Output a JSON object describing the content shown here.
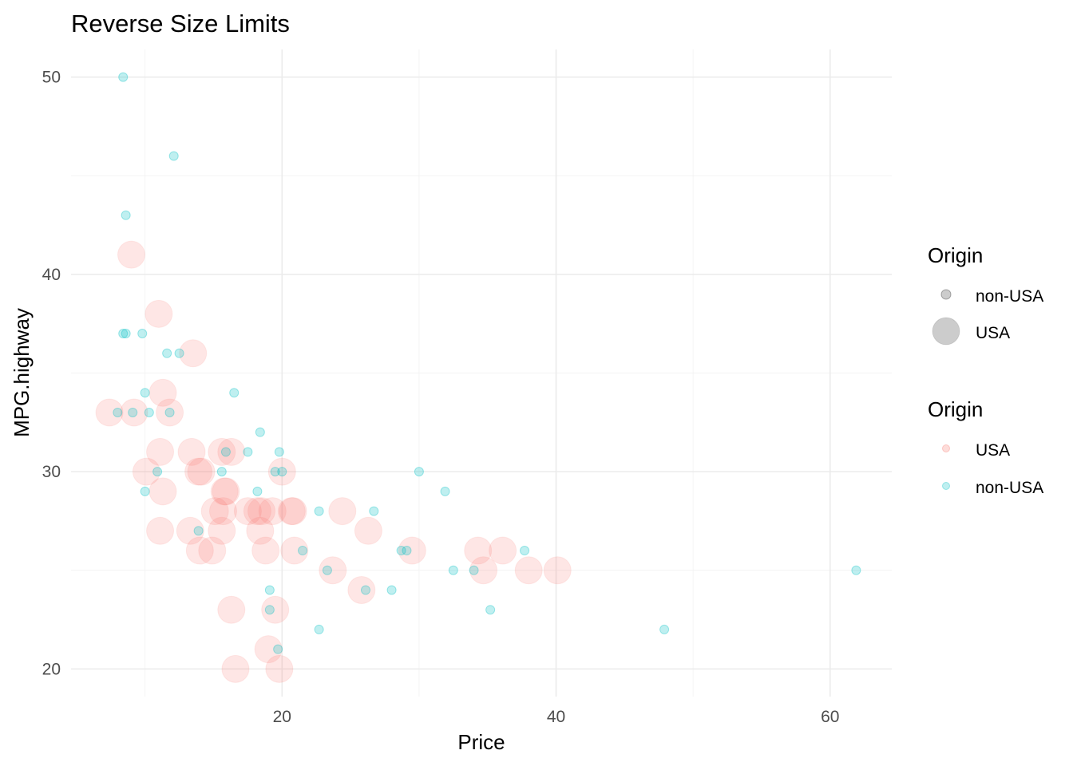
{
  "chart_data": {
    "type": "scatter",
    "title": "Reverse Size Limits",
    "xlabel": "Price",
    "ylabel": "MPG.highway",
    "xlim": [
      4.6,
      64.5
    ],
    "ylim": [
      18.6,
      51.4
    ],
    "x_ticks": [
      20,
      40,
      60
    ],
    "x_minor": [
      10,
      30,
      50
    ],
    "y_ticks": [
      20,
      30,
      40,
      50
    ],
    "y_minor": [
      25,
      35,
      45
    ],
    "grid": true,
    "legend_position": "right",
    "size_legend": {
      "title": "Origin",
      "items": [
        {
          "label": "non-USA",
          "size": "small"
        },
        {
          "label": "USA",
          "size": "large"
        }
      ]
    },
    "color_legend": {
      "title": "Origin",
      "items": [
        {
          "label": "USA",
          "color": "#F8766D"
        },
        {
          "label": "non-USA",
          "color": "#00BFC4"
        }
      ]
    },
    "series": [
      {
        "name": "USA",
        "color": "#F8766D",
        "size": "large",
        "points": [
          [
            7.4,
            33
          ],
          [
            9.0,
            41
          ],
          [
            9.2,
            33
          ],
          [
            10.1,
            30
          ],
          [
            11.0,
            38
          ],
          [
            11.1,
            31
          ],
          [
            11.1,
            27
          ],
          [
            11.3,
            29
          ],
          [
            11.3,
            34
          ],
          [
            11.8,
            33
          ],
          [
            13.3,
            27
          ],
          [
            13.4,
            31
          ],
          [
            13.5,
            36
          ],
          [
            13.9,
            30
          ],
          [
            14.0,
            26
          ],
          [
            14.1,
            30
          ],
          [
            14.9,
            26
          ],
          [
            15.1,
            28
          ],
          [
            15.6,
            27
          ],
          [
            15.6,
            31
          ],
          [
            15.7,
            28
          ],
          [
            15.8,
            29
          ],
          [
            15.9,
            29
          ],
          [
            16.3,
            23
          ],
          [
            16.3,
            31
          ],
          [
            16.6,
            20
          ],
          [
            17.5,
            28
          ],
          [
            18.2,
            28
          ],
          [
            18.4,
            27
          ],
          [
            18.5,
            28
          ],
          [
            18.8,
            26
          ],
          [
            19.0,
            21
          ],
          [
            19.3,
            28
          ],
          [
            19.5,
            23
          ],
          [
            19.8,
            20
          ],
          [
            20.0,
            30
          ],
          [
            20.7,
            28
          ],
          [
            20.8,
            28
          ],
          [
            20.9,
            26
          ],
          [
            23.7,
            25
          ],
          [
            24.4,
            28
          ],
          [
            25.8,
            24
          ],
          [
            26.3,
            27
          ],
          [
            29.5,
            26
          ],
          [
            34.3,
            26
          ],
          [
            34.7,
            25
          ],
          [
            36.1,
            26
          ],
          [
            38.0,
            25
          ],
          [
            40.1,
            25
          ]
        ]
      },
      {
        "name": "non-USA",
        "color": "#00BFC4",
        "size": "small",
        "points": [
          [
            8.0,
            33
          ],
          [
            8.4,
            37
          ],
          [
            8.4,
            50
          ],
          [
            8.6,
            37
          ],
          [
            8.6,
            43
          ],
          [
            9.1,
            33
          ],
          [
            9.8,
            37
          ],
          [
            10.0,
            29
          ],
          [
            10.0,
            34
          ],
          [
            10.3,
            33
          ],
          [
            10.9,
            30
          ],
          [
            11.6,
            36
          ],
          [
            11.8,
            33
          ],
          [
            12.1,
            46
          ],
          [
            12.5,
            36
          ],
          [
            13.9,
            27
          ],
          [
            15.6,
            30
          ],
          [
            15.9,
            31
          ],
          [
            16.5,
            34
          ],
          [
            17.5,
            31
          ],
          [
            18.2,
            29
          ],
          [
            18.4,
            32
          ],
          [
            19.1,
            24
          ],
          [
            19.1,
            23
          ],
          [
            19.5,
            30
          ],
          [
            19.7,
            21
          ],
          [
            19.8,
            31
          ],
          [
            20.0,
            30
          ],
          [
            21.5,
            26
          ],
          [
            22.7,
            28
          ],
          [
            22.7,
            22
          ],
          [
            23.3,
            25
          ],
          [
            26.1,
            24
          ],
          [
            26.7,
            28
          ],
          [
            28.0,
            24
          ],
          [
            28.7,
            26
          ],
          [
            29.1,
            26
          ],
          [
            30.0,
            30
          ],
          [
            31.9,
            29
          ],
          [
            32.5,
            25
          ],
          [
            34.0,
            25
          ],
          [
            35.2,
            23
          ],
          [
            37.7,
            26
          ],
          [
            47.9,
            22
          ],
          [
            61.9,
            25
          ]
        ]
      }
    ]
  }
}
